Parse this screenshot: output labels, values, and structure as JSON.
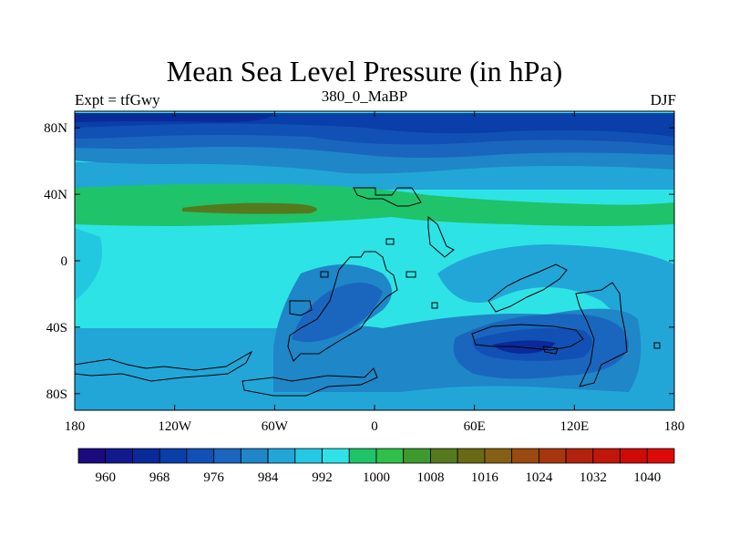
{
  "title": "Mean Sea Level Pressure (in hPa)",
  "subtitle_left": "Expt = tfGwy",
  "subtitle_center": "380_0_MaBP",
  "subtitle_right": "DJF",
  "x_ticks": [
    "180",
    "120W",
    "60W",
    "0",
    "60E",
    "120E",
    "180"
  ],
  "y_ticks": [
    "80N",
    "40N",
    "0",
    "40S",
    "80S"
  ],
  "colorbar": {
    "labels": [
      "960",
      "968",
      "976",
      "984",
      "992",
      "1000",
      "1008",
      "1016",
      "1024",
      "1032",
      "1040"
    ],
    "colors": [
      "#1b0a7e",
      "#101a8c",
      "#0b2a9a",
      "#0a3ea8",
      "#1150b4",
      "#1a66be",
      "#1f86c8",
      "#22a6d8",
      "#24c8e4",
      "#2ee3e6",
      "#1fc36a",
      "#2fbf4a",
      "#3f9a2e",
      "#557a1e",
      "#6b6a14",
      "#856014",
      "#9a4a10",
      "#a6360e",
      "#b2220c",
      "#c11608",
      "#cf0b06",
      "#dd0a0a"
    ]
  },
  "chart_data": {
    "type": "filled-contour-map",
    "variable": "Mean Sea Level Pressure",
    "units": "hPa",
    "experiment": "tfGwy",
    "period": "380_0_MaBP",
    "season": "DJF",
    "x_range": [
      -180,
      180
    ],
    "y_range": [
      -90,
      90
    ],
    "contour_levels": [
      960,
      964,
      968,
      972,
      976,
      980,
      984,
      988,
      992,
      996,
      1000,
      1004,
      1008,
      1012,
      1016,
      1020,
      1024,
      1028,
      1032,
      1036,
      1040
    ],
    "features": [
      {
        "name": "northern low-pressure belt",
        "approx_lat": "60N-90N",
        "approx_hPa": "976-984"
      },
      {
        "name": "subtropical high band",
        "approx_lat": "30N-45N",
        "approx_hPa": "1004-1012"
      },
      {
        "name": "subtropical high core",
        "approx_lon": "120W-30W",
        "approx_lat": "33N",
        "approx_hPa": "1012"
      },
      {
        "name": "southern low over continent",
        "approx_lon": "60E-120E",
        "approx_lat": "50S",
        "approx_hPa": "984-988"
      }
    ]
  }
}
